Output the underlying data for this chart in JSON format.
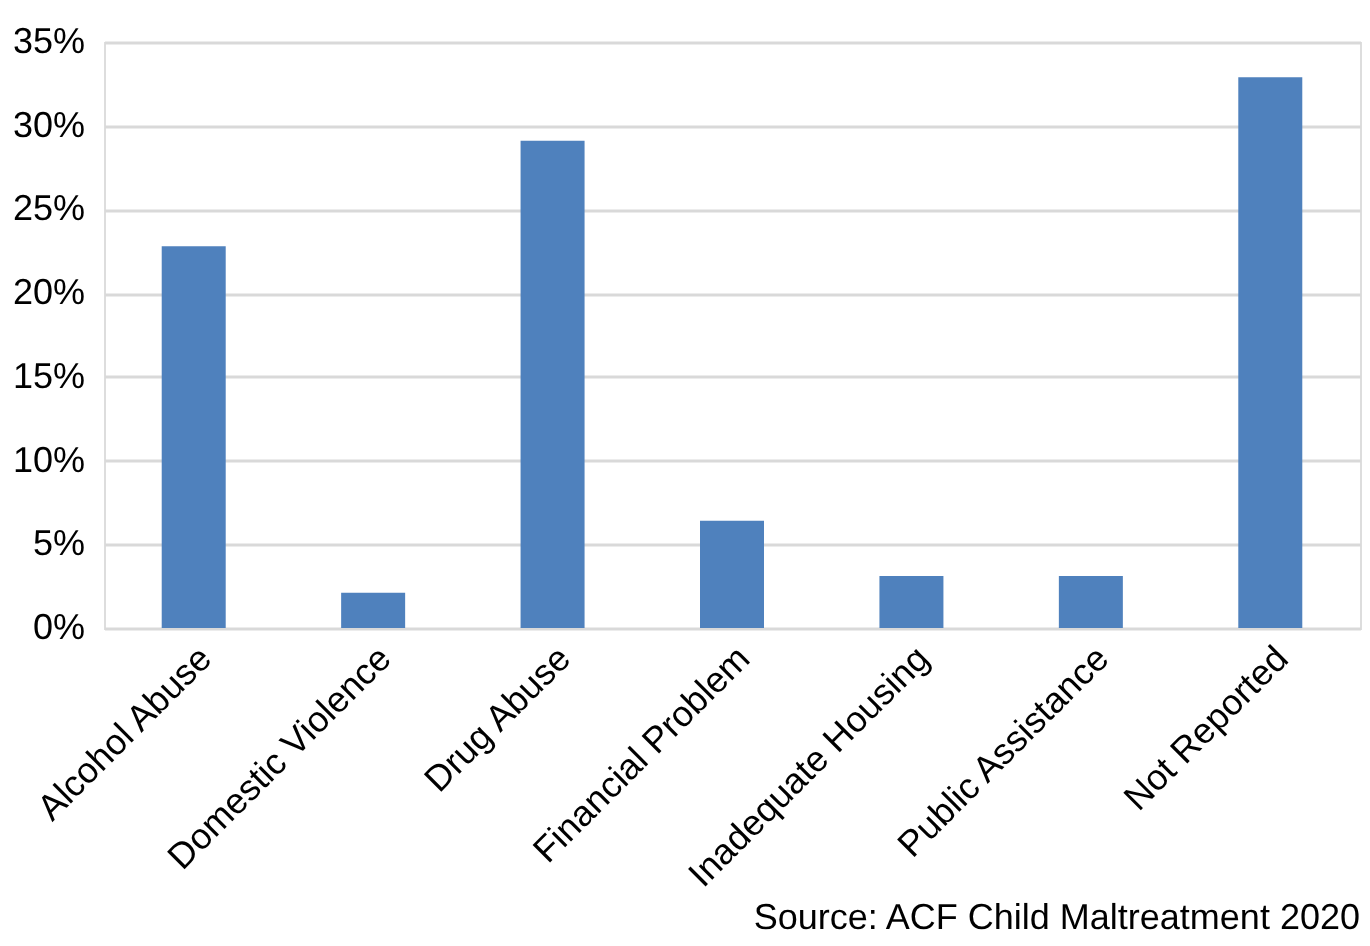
{
  "chart_data": {
    "type": "bar",
    "categories": [
      "Alcohol Abuse",
      "Domestic Violence",
      "Drug Abuse",
      "Financial Problem",
      "Inadequate Housing",
      "Public Assistance",
      "Not Reported"
    ],
    "values": [
      22.8,
      2.1,
      29.1,
      6.4,
      3.1,
      3.1,
      32.9
    ],
    "color": "#4f81bd",
    "ylim": [
      0,
      35
    ],
    "yticks": [
      {
        "value": 0,
        "label": "0%"
      },
      {
        "value": 5,
        "label": "5%"
      },
      {
        "value": 10,
        "label": "10%"
      },
      {
        "value": 15,
        "label": "15%"
      },
      {
        "value": 20,
        "label": "20%"
      },
      {
        "value": 25,
        "label": "25%"
      },
      {
        "value": 30,
        "label": "30%"
      },
      {
        "value": 35,
        "label": "35%"
      }
    ],
    "grid": "y",
    "annotations": [
      "Source: ACF Child Maltreatment 2020"
    ]
  }
}
